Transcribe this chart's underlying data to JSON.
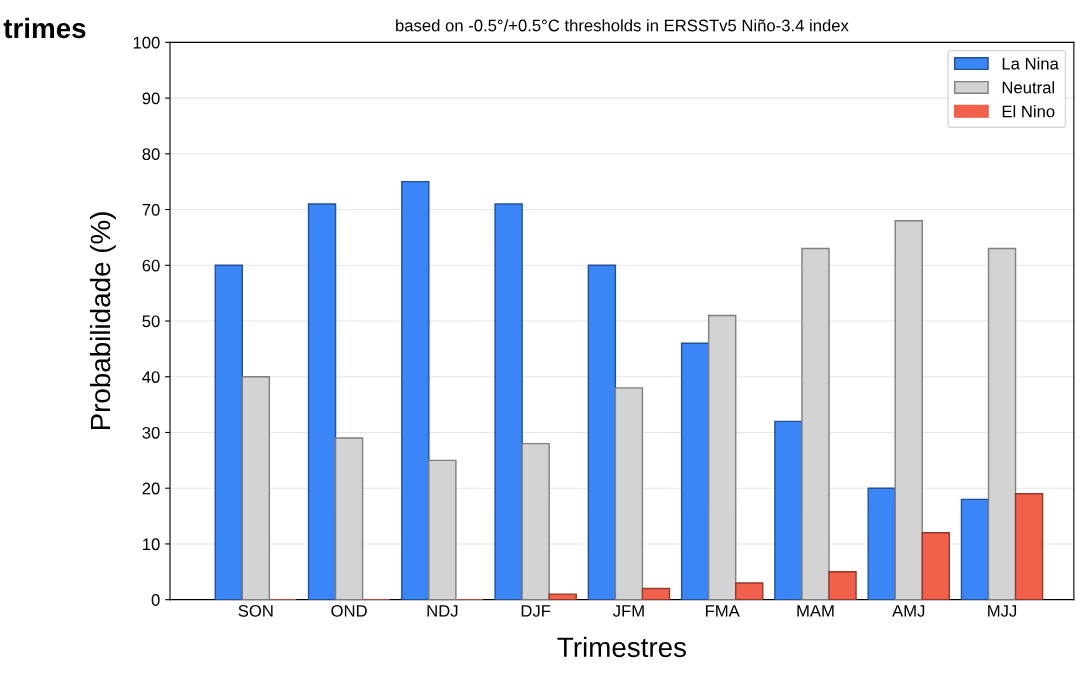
{
  "chart_data": {
    "type": "bar",
    "title": "trimes",
    "subtitle": "based on -0.5°/+0.5°C thresholds in ERSSTv5 Niño-3.4 index",
    "xlabel": "Trimestres",
    "ylabel": "Probabilidade (%)",
    "categories": [
      "SON",
      "OND",
      "NDJ",
      "DJF",
      "JFM",
      "FMA",
      "MAM",
      "AMJ",
      "MJJ"
    ],
    "series": [
      {
        "name": "La Nina",
        "color": "#3a86f7",
        "values": [
          60,
          71,
          75,
          71,
          60,
          46,
          32,
          20,
          18
        ]
      },
      {
        "name": "Neutral",
        "color": "#d3d3d3",
        "values": [
          40,
          29,
          25,
          28,
          38,
          51,
          63,
          68,
          63
        ]
      },
      {
        "name": "El Nino",
        "color": "#f0604a",
        "values": [
          0,
          0,
          0,
          1,
          2,
          3,
          5,
          12,
          19
        ]
      }
    ],
    "ylim": [
      0,
      100
    ],
    "yticks": [
      0,
      10,
      20,
      30,
      40,
      50,
      60,
      70,
      80,
      90,
      100
    ],
    "grid": "y",
    "legend": "top right"
  }
}
